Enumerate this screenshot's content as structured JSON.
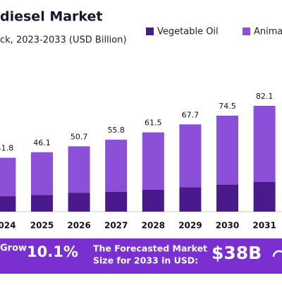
{
  "chart_data": {
    "type": "bar",
    "stacked": true,
    "title": "diesel Market",
    "subtitle": "ck, 2023-2033 (USD Billion)",
    "categories": [
      "024",
      "2025",
      "2026",
      "2027",
      "2028",
      "2029",
      "2030",
      "2031"
    ],
    "series": [
      {
        "name": "Vegetable Oil",
        "color": "#4a1a8c",
        "values": [
          12,
          13,
          14.5,
          15.5,
          17,
          19,
          21,
          23
        ]
      },
      {
        "name": "Anima",
        "color": "#8b4fd8",
        "values": [
          29.8,
          33.1,
          36.2,
          40.3,
          44.5,
          48.7,
          53.5,
          59.1
        ]
      }
    ],
    "totals": [
      41.8,
      46.1,
      50.7,
      55.8,
      61.5,
      67.7,
      74.5,
      82.1
    ]
  },
  "banner": {
    "growth_label": "Grow",
    "growth_value": "10.1%",
    "forecast_lines": [
      "The Forecasted Market",
      "Size for 2033 in USD:"
    ],
    "forecast_value": "$38B"
  }
}
